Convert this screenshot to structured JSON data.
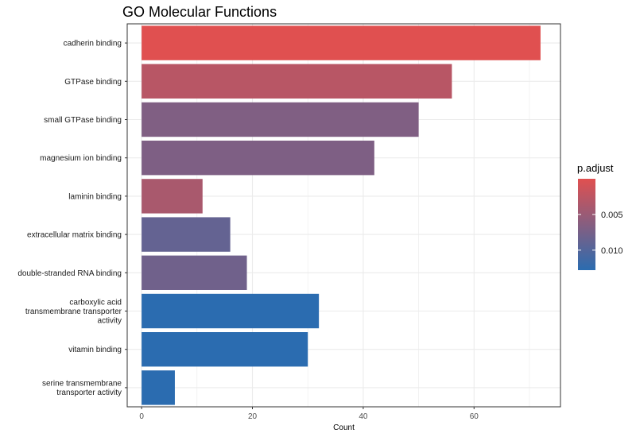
{
  "chart_data": {
    "type": "bar",
    "orientation": "horizontal",
    "title": "GO Molecular Functions",
    "xlabel": "Count",
    "ylabel": "",
    "xlim": [
      -2.6,
      75.6
    ],
    "x_ticks": [
      0,
      20,
      40,
      60
    ],
    "grid": true,
    "categories": [
      "cadherin binding",
      "GTPase binding",
      "small GTPase binding",
      "magnesium ion binding",
      "laminin binding",
      "extracellular matrix binding",
      "double-stranded RNA binding",
      "carboxylic acid transmembrane transporter activity",
      "vitamin binding",
      "serine transmembrane transporter activity"
    ],
    "category_display": [
      [
        "cadherin binding"
      ],
      [
        "GTPase binding"
      ],
      [
        "small GTPase binding"
      ],
      [
        "magnesium ion binding"
      ],
      [
        "laminin binding"
      ],
      [
        "extracellular matrix binding"
      ],
      [
        "double-stranded RNA binding"
      ],
      [
        "carboxylic acid",
        "transmembrane transporter",
        "activity"
      ],
      [
        "vitamin binding"
      ],
      [
        "serine transmembrane",
        "transporter activity"
      ]
    ],
    "values": [
      72,
      56,
      50,
      42,
      11,
      16,
      19,
      32,
      30,
      6
    ],
    "p_adjust": [
      5e-07,
      0.0028,
      0.0068,
      0.0069,
      0.0039,
      0.0088,
      0.0079,
      0.0128,
      0.0128,
      0.0128
    ],
    "legend": {
      "title": "p.adjust",
      "placement": "right",
      "ticks": [
        0.005,
        0.01
      ],
      "tick_labels": [
        "0.005",
        "0.010"
      ],
      "range": [
        5e-07,
        0.0128
      ]
    },
    "colors": {
      "low": "#E05050",
      "high": "#2B6CB0",
      "panel_border": "#333333",
      "grid": "#EBEBEB"
    }
  }
}
